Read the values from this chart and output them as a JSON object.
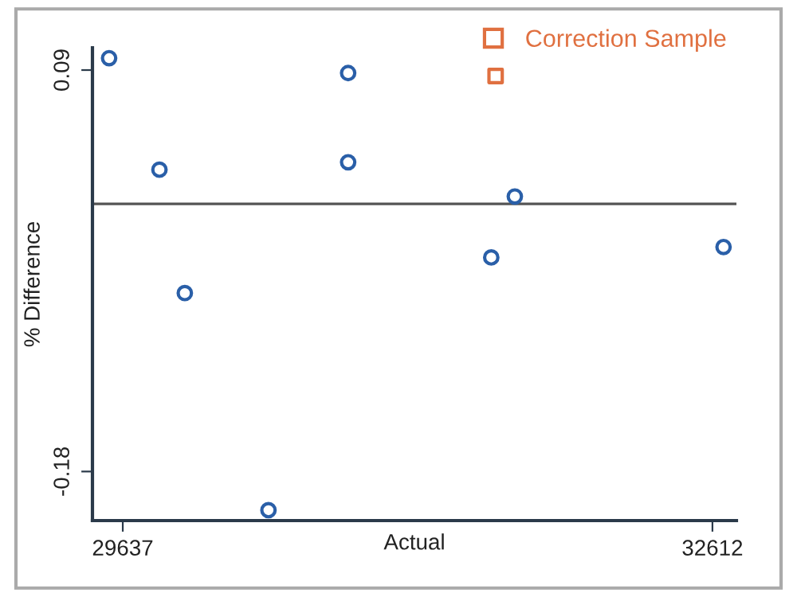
{
  "chart_data": {
    "type": "scatter",
    "xlabel": "Actual",
    "ylabel": "% Difference",
    "xlim": [
      29484,
      32733
    ],
    "ylim": [
      -0.213,
      0.105
    ],
    "xticks": [
      29637,
      32612
    ],
    "yticks": [
      -0.18,
      0.09
    ],
    "ref_lines": [
      {
        "axis": "y",
        "value": 0,
        "color": "#555555"
      }
    ],
    "grid": false,
    "legend": "top right",
    "series": [
      {
        "color": "#2a5fa8",
        "marker": "circle",
        "x": [
          29568,
          29822,
          29950,
          30372,
          30774,
          30774,
          31496,
          31615,
          32668
        ],
        "values": [
          0.098,
          0.023,
          -0.06,
          -0.206,
          0.088,
          0.028,
          -0.036,
          0.005,
          -0.029
        ]
      },
      {
        "name": "Correction Sample",
        "color": "#e07040",
        "marker": "square",
        "x": [
          31518
        ],
        "values": [
          0.086
        ]
      }
    ]
  }
}
